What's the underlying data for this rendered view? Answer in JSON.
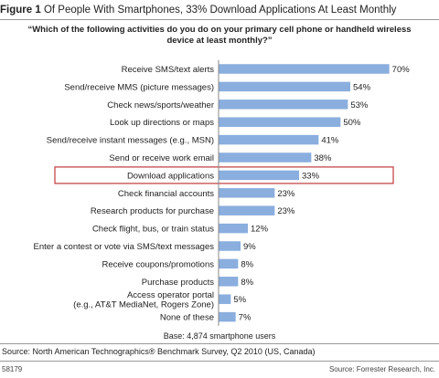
{
  "figure": {
    "number_label": "Figure 1",
    "title": "Of People With Smartphones, 33% Download Applications At Least Monthly"
  },
  "chart_data": {
    "type": "bar",
    "orientation": "horizontal",
    "title": "“Which of the following activities do you do on your primary cell phone or handheld wireless device at least monthly?”",
    "categories": [
      "Receive SMS/text alerts",
      "Send/receive MMS (picture messages)",
      "Check news/sports/weather",
      "Look up directions or maps",
      "Send/receive instant messages (e.g., MSN)",
      "Send or receive work email",
      "Download applications",
      "Check financial accounts",
      "Research products for purchase",
      "Check flight, bus, or train status",
      "Enter a contest or vote via SMS/text messages",
      "Receive coupons/promotions",
      "Purchase products",
      "Access operator portal\n(e.g., AT&T MediaNet, Rogers Zone)",
      "None of these"
    ],
    "values": [
      70,
      54,
      53,
      50,
      41,
      38,
      33,
      23,
      23,
      12,
      9,
      8,
      8,
      5,
      7
    ],
    "value_labels": [
      "70%",
      "54%",
      "53%",
      "50%",
      "41%",
      "38%",
      "33%",
      "23%",
      "23%",
      "12%",
      "9%",
      "8%",
      "8%",
      "5%",
      "7%"
    ],
    "highlighted_category": "Download applications",
    "xlim": [
      0,
      72
    ],
    "bar_color": "#8aaede",
    "highlight_color": "#c0393b",
    "base_note": "Base: 4,874 smartphone users"
  },
  "source": "Source: North American Technographics® Benchmark Survey, Q2 2010 (US, Canada)",
  "footer": {
    "id": "58179",
    "credit": "Source: Forrester Research, Inc."
  }
}
